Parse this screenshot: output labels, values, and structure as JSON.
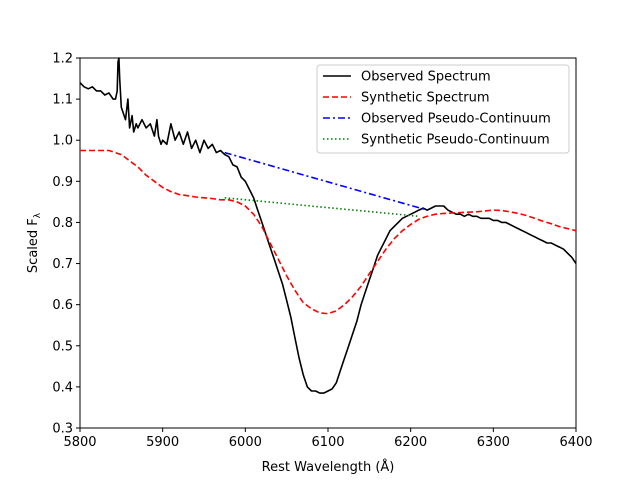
{
  "chart_data": {
    "type": "line",
    "title": "",
    "xlabel": "Rest Wavelength (Å)",
    "ylabel": "Scaled F",
    "ylabel_subscript": "λ",
    "xlim": [
      5800,
      6400
    ],
    "ylim": [
      0.3,
      1.2
    ],
    "xticks": [
      5800,
      5900,
      6000,
      6100,
      6200,
      6300,
      6400
    ],
    "xtick_labels": [
      "5800",
      "5900",
      "6000",
      "6100",
      "6200",
      "6300",
      "6400"
    ],
    "yticks": [
      0.3,
      0.4,
      0.5,
      0.6,
      0.7,
      0.8,
      0.9,
      1.0,
      1.1,
      1.2
    ],
    "ytick_labels": [
      "0.3",
      "0.4",
      "0.5",
      "0.6",
      "0.7",
      "0.8",
      "0.9",
      "1.0",
      "1.1",
      "1.2"
    ],
    "grid": false,
    "legend_position": "top-right",
    "series": [
      {
        "name": "Observed Spectrum",
        "color": "#000000",
        "style": "solid",
        "x": [
          5800,
          5805,
          5810,
          5815,
          5820,
          5825,
          5830,
          5835,
          5840,
          5843,
          5845,
          5846,
          5847,
          5848,
          5850,
          5855,
          5858,
          5860,
          5863,
          5865,
          5868,
          5870,
          5875,
          5880,
          5885,
          5890,
          5893,
          5895,
          5898,
          5900,
          5905,
          5910,
          5915,
          5920,
          5925,
          5930,
          5935,
          5940,
          5945,
          5950,
          5955,
          5960,
          5965,
          5970,
          5975,
          5980,
          5985,
          5990,
          5995,
          6000,
          6005,
          6010,
          6015,
          6020,
          6025,
          6030,
          6035,
          6040,
          6045,
          6050,
          6055,
          6060,
          6065,
          6070,
          6075,
          6080,
          6085,
          6090,
          6095,
          6100,
          6105,
          6110,
          6115,
          6120,
          6125,
          6130,
          6135,
          6140,
          6145,
          6150,
          6155,
          6160,
          6165,
          6170,
          6175,
          6180,
          6185,
          6190,
          6195,
          6200,
          6205,
          6210,
          6215,
          6220,
          6225,
          6230,
          6235,
          6240,
          6245,
          6250,
          6255,
          6260,
          6265,
          6270,
          6275,
          6280,
          6285,
          6290,
          6295,
          6300,
          6305,
          6310,
          6315,
          6320,
          6325,
          6330,
          6335,
          6340,
          6345,
          6350,
          6355,
          6360,
          6365,
          6370,
          6375,
          6380,
          6385,
          6390,
          6395,
          6400
        ],
        "values": [
          1.14,
          1.13,
          1.125,
          1.13,
          1.12,
          1.12,
          1.11,
          1.115,
          1.1,
          1.1,
          1.12,
          1.19,
          1.2,
          1.15,
          1.08,
          1.05,
          1.1,
          1.03,
          1.06,
          1.02,
          1.04,
          1.03,
          1.05,
          1.03,
          1.04,
          1.01,
          1.05,
          1.01,
          0.99,
          1.0,
          0.99,
          1.04,
          1.0,
          1.02,
          0.99,
          1.02,
          0.98,
          1.0,
          0.97,
          1.0,
          0.98,
          0.99,
          0.97,
          0.975,
          0.965,
          0.96,
          0.94,
          0.935,
          0.91,
          0.9,
          0.88,
          0.86,
          0.83,
          0.8,
          0.77,
          0.74,
          0.71,
          0.68,
          0.65,
          0.61,
          0.57,
          0.52,
          0.47,
          0.43,
          0.4,
          0.39,
          0.39,
          0.385,
          0.385,
          0.39,
          0.395,
          0.41,
          0.44,
          0.47,
          0.5,
          0.53,
          0.56,
          0.6,
          0.63,
          0.66,
          0.69,
          0.72,
          0.74,
          0.76,
          0.78,
          0.79,
          0.8,
          0.81,
          0.815,
          0.82,
          0.825,
          0.83,
          0.835,
          0.83,
          0.835,
          0.84,
          0.84,
          0.84,
          0.83,
          0.825,
          0.82,
          0.82,
          0.815,
          0.82,
          0.815,
          0.815,
          0.81,
          0.81,
          0.81,
          0.805,
          0.805,
          0.8,
          0.8,
          0.795,
          0.79,
          0.785,
          0.78,
          0.775,
          0.77,
          0.765,
          0.76,
          0.755,
          0.75,
          0.75,
          0.745,
          0.74,
          0.735,
          0.725,
          0.715,
          0.7
        ]
      },
      {
        "name": "Synthetic Spectrum",
        "color": "#ff0000",
        "style": "dashed",
        "x": [
          5800,
          5820,
          5835,
          5850,
          5860,
          5870,
          5880,
          5890,
          5900,
          5910,
          5920,
          5930,
          5940,
          5950,
          5960,
          5970,
          5980,
          5990,
          6000,
          6010,
          6020,
          6030,
          6040,
          6050,
          6060,
          6070,
          6080,
          6090,
          6100,
          6110,
          6120,
          6130,
          6140,
          6150,
          6160,
          6170,
          6180,
          6190,
          6200,
          6210,
          6220,
          6230,
          6240,
          6250,
          6260,
          6270,
          6280,
          6290,
          6300,
          6310,
          6320,
          6330,
          6340,
          6350,
          6360,
          6370,
          6380,
          6390,
          6400
        ],
        "values": [
          0.975,
          0.975,
          0.975,
          0.965,
          0.95,
          0.935,
          0.915,
          0.9,
          0.885,
          0.875,
          0.868,
          0.865,
          0.862,
          0.86,
          0.858,
          0.855,
          0.855,
          0.85,
          0.84,
          0.82,
          0.79,
          0.75,
          0.71,
          0.67,
          0.635,
          0.605,
          0.59,
          0.58,
          0.578,
          0.585,
          0.6,
          0.62,
          0.645,
          0.675,
          0.705,
          0.735,
          0.76,
          0.78,
          0.795,
          0.808,
          0.815,
          0.82,
          0.822,
          0.823,
          0.824,
          0.825,
          0.826,
          0.828,
          0.83,
          0.829,
          0.826,
          0.822,
          0.817,
          0.81,
          0.803,
          0.797,
          0.79,
          0.785,
          0.78
        ]
      },
      {
        "name": "Observed Pseudo-Continuum",
        "color": "#0000ff",
        "style": "dashdot",
        "x": [
          5975,
          6220
        ],
        "values": [
          0.97,
          0.83
        ]
      },
      {
        "name": "Synthetic Pseudo-Continuum",
        "color": "#008000",
        "style": "dotted",
        "x": [
          5975,
          6210
        ],
        "values": [
          0.86,
          0.815
        ]
      }
    ]
  }
}
